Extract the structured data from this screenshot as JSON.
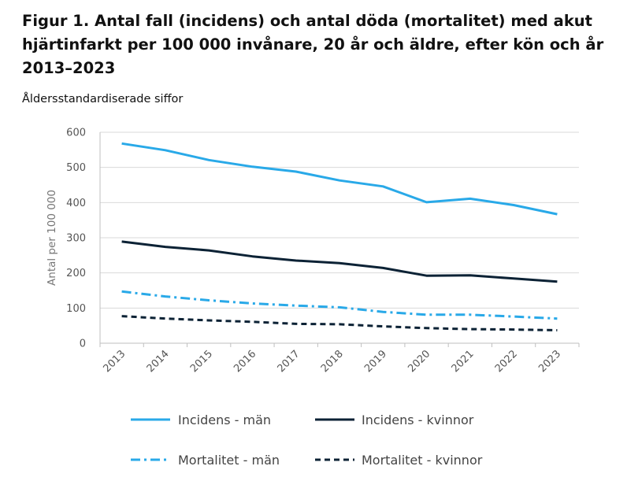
{
  "chart_data": {
    "type": "line",
    "title": "Figur 1. Antal fall (incidens) och antal döda (mortalitet) med akut hjärtinfarkt per 100 000 invånare, 20 år och äldre, efter kön och år 2013–2023",
    "subtitle": "Åldersstandardiserade siffor",
    "ylabel": "Antal per 100 000",
    "xlabel": "",
    "categories": [
      "2013",
      "2014",
      "2015",
      "2016",
      "2017",
      "2018",
      "2019",
      "2020",
      "2021",
      "2022",
      "2023"
    ],
    "yticks": [
      "0",
      "100",
      "200",
      "300",
      "400",
      "500",
      "600"
    ],
    "ylim": [
      0,
      600
    ],
    "grid": "horizontal",
    "legend_position": "bottom",
    "series": [
      {
        "name": "Incidens - män",
        "values": [
          568,
          549,
          521,
          502,
          488,
          463,
          446,
          401,
          411,
          393,
          367
        ],
        "color": "#29a9e8",
        "style": "solid"
      },
      {
        "name": "Incidens - kvinnor",
        "values": [
          289,
          274,
          264,
          247,
          235,
          228,
          214,
          192,
          193,
          184,
          175
        ],
        "color": "#0c2235",
        "style": "solid"
      },
      {
        "name": "Mortalitet - män",
        "values": [
          147,
          133,
          122,
          113,
          107,
          102,
          89,
          81,
          81,
          76,
          70
        ],
        "color": "#29a9e8",
        "style": "dashdot"
      },
      {
        "name": "Mortalitet - kvinnor",
        "values": [
          77,
          70,
          65,
          61,
          55,
          54,
          48,
          43,
          40,
          39,
          37
        ],
        "color": "#0c2235",
        "style": "dashed"
      }
    ]
  }
}
